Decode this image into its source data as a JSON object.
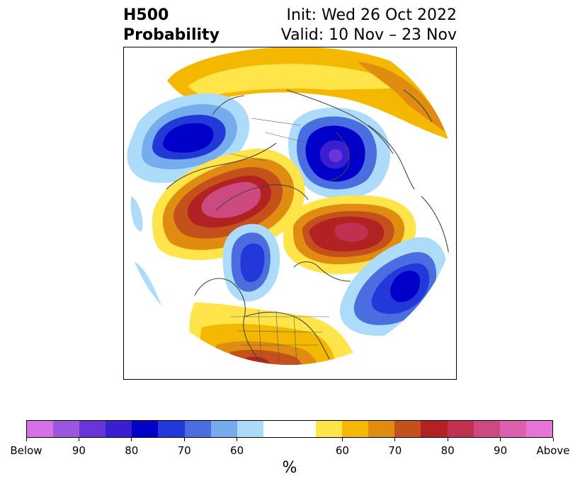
{
  "header": {
    "title_line1": "H500",
    "title_line2": "Probability",
    "init_label": "Init: Wed 26 Oct 2022",
    "valid_label": "Valid: 10 Nov – 23 Nov"
  },
  "map": {
    "projection": "north-polar-stereographic",
    "features": [
      {
        "id": "below-asia",
        "kind": "below",
        "peak_percent": 80
      },
      {
        "id": "below-arctic",
        "kind": "below",
        "peak_percent": 90
      },
      {
        "id": "below-pacific-coast",
        "kind": "below",
        "peak_percent": 80
      },
      {
        "id": "below-north-atlantic",
        "kind": "below",
        "peak_percent": 80
      },
      {
        "id": "above-europe-siberia",
        "kind": "above",
        "peak_percent": 90
      },
      {
        "id": "above-alaska-arctic",
        "kind": "above",
        "peak_percent": 90
      },
      {
        "id": "above-us-southwest",
        "kind": "above",
        "peak_percent": 80
      },
      {
        "id": "above-northern-rim",
        "kind": "above",
        "peak_percent": 65
      }
    ]
  },
  "colorbar": {
    "colors": [
      "#d670e6",
      "#9a57de",
      "#6a35d8",
      "#3a1fd0",
      "#0000c8",
      "#2238d8",
      "#4a6ee0",
      "#74acee",
      "#acdcfa",
      "#ffffff",
      "#ffffff",
      "#ffe44a",
      "#f4b800",
      "#e08c10",
      "#c4501c",
      "#b22222",
      "#c03050",
      "#cc4a80",
      "#dc60b0",
      "#e874d8"
    ],
    "ticks": [
      {
        "label": "Below",
        "frac": 0.0
      },
      {
        "label": "90",
        "frac": 0.1
      },
      {
        "label": "80",
        "frac": 0.2
      },
      {
        "label": "70",
        "frac": 0.3
      },
      {
        "label": "60",
        "frac": 0.4
      },
      {
        "label": "60",
        "frac": 0.6
      },
      {
        "label": "70",
        "frac": 0.7
      },
      {
        "label": "80",
        "frac": 0.8
      },
      {
        "label": "90",
        "frac": 0.9
      },
      {
        "label": "Above",
        "frac": 1.0
      }
    ],
    "unit": "%"
  }
}
